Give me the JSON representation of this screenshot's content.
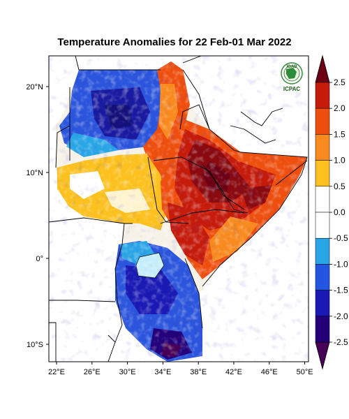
{
  "map": {
    "title": "Temperature Anomalies for 22 Feb-01 Mar 2022",
    "lon_labels": [
      "22°E",
      "26°E",
      "30°E",
      "34°E",
      "38°E",
      "42°E",
      "46°E",
      "50°E"
    ],
    "lat_labels": [
      "20°N",
      "10°N",
      "0°",
      "10°S"
    ],
    "logo": {
      "top_text": "IGAD",
      "bottom_text": "ICPAC"
    }
  },
  "colorbar": {
    "labels": [
      "2.5",
      "2.0",
      "1.5",
      "1.0",
      "0.5",
      "0.0",
      "-0.5",
      "-1.0",
      "-1.5",
      "-2.0",
      "-2.5"
    ],
    "colors": [
      "#6d0012",
      "#c51b0b",
      "#ee4f0e",
      "#f88a1f",
      "#fcc11f",
      "#ffffff",
      "#ffffff",
      "#2aa6e6",
      "#2255e0",
      "#1a19b4",
      "#23007a",
      "#460055"
    ]
  }
}
